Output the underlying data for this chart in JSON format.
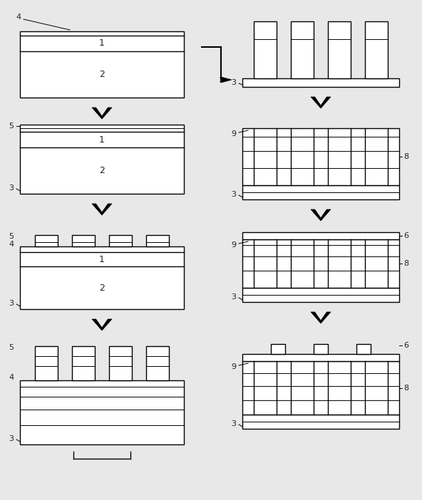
{
  "bg_color": "#e8e8e8",
  "line_color": "#000000",
  "fill_color": "#ffffff",
  "fig_width": 5.92,
  "fig_height": 7.02,
  "dpi": 100,
  "lw": 1.0
}
